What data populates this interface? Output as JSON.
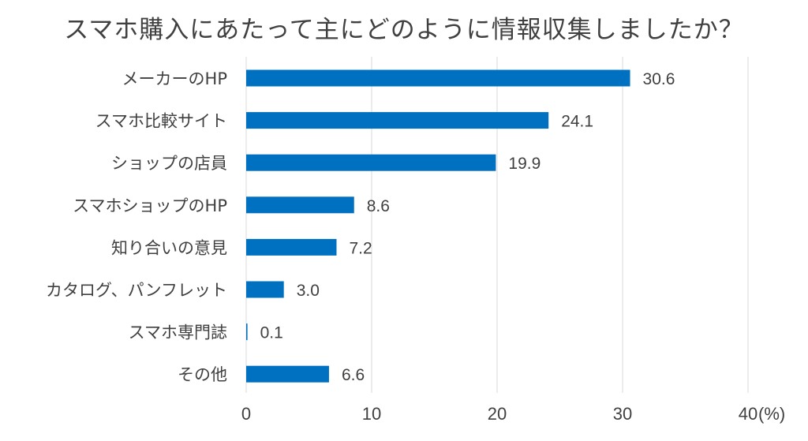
{
  "chart_data": {
    "type": "bar",
    "orientation": "horizontal",
    "title": "スマホ購入にあたって主にどのように情報収集しましたか？",
    "categories": [
      "メーカーのHP",
      "スマホ比較サイト",
      "ショップの店員",
      "スマホショップのHP",
      "知り合いの意見",
      "カタログ、パンフレット",
      "スマホ専門誌",
      "その他"
    ],
    "values": [
      30.6,
      24.1,
      19.9,
      8.6,
      7.2,
      3.0,
      0.1,
      6.6
    ],
    "value_labels": [
      "30.6",
      "24.1",
      "19.9",
      "8.6",
      "7.2",
      "3.0",
      "0.1",
      "6.6"
    ],
    "xlim": [
      0,
      40
    ],
    "xticks": [
      "0",
      "10",
      "20",
      "30",
      "40"
    ],
    "x_unit": "(%)",
    "grid": true,
    "bar_color": "#0070C0",
    "grid_color": "#D9D9D9"
  }
}
